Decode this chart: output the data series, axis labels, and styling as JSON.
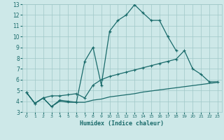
{
  "xlabel": "Humidex (Indice chaleur)",
  "bg_color": "#cde8e8",
  "grid_color": "#a0c8c8",
  "line_color": "#1a6b6b",
  "xlim": [
    -0.5,
    23.5
  ],
  "ylim": [
    3,
    13
  ],
  "xticks": [
    0,
    1,
    2,
    3,
    4,
    5,
    6,
    7,
    8,
    9,
    10,
    11,
    12,
    13,
    14,
    15,
    16,
    17,
    18,
    19,
    20,
    21,
    22,
    23
  ],
  "yticks": [
    3,
    4,
    5,
    6,
    7,
    8,
    9,
    10,
    11,
    12,
    13
  ],
  "line1_x": [
    0,
    1,
    2,
    3,
    4,
    5,
    6,
    7,
    8,
    9,
    10,
    11,
    12,
    13,
    14,
    15,
    16,
    17,
    18
  ],
  "line1_y": [
    4.8,
    3.8,
    4.3,
    3.5,
    4.1,
    4.0,
    3.9,
    7.7,
    9.0,
    5.5,
    10.5,
    11.5,
    12.0,
    12.95,
    12.2,
    11.5,
    11.5,
    10.0,
    8.7
  ],
  "line2_x": [
    0,
    1,
    2,
    3,
    4,
    5,
    6,
    7,
    8,
    9,
    10,
    11,
    12,
    13,
    14,
    15,
    16,
    17,
    18,
    19,
    20,
    21,
    22,
    23
  ],
  "line2_y": [
    4.8,
    3.8,
    4.3,
    4.5,
    4.5,
    4.6,
    4.7,
    4.3,
    5.5,
    6.0,
    6.3,
    6.5,
    6.7,
    6.9,
    7.1,
    7.3,
    7.5,
    7.7,
    7.9,
    8.7,
    7.0,
    6.5,
    5.8,
    5.8
  ],
  "line3_x": [
    0,
    1,
    2,
    3,
    4,
    5,
    6,
    7,
    8,
    9,
    10,
    11,
    12,
    13,
    14,
    15,
    16,
    17,
    18,
    19,
    20,
    21,
    22,
    23
  ],
  "line3_y": [
    4.8,
    3.8,
    4.3,
    3.5,
    4.0,
    3.9,
    3.9,
    3.9,
    4.1,
    4.2,
    4.4,
    4.5,
    4.6,
    4.7,
    4.85,
    4.95,
    5.05,
    5.15,
    5.25,
    5.35,
    5.45,
    5.55,
    5.65,
    5.75
  ]
}
